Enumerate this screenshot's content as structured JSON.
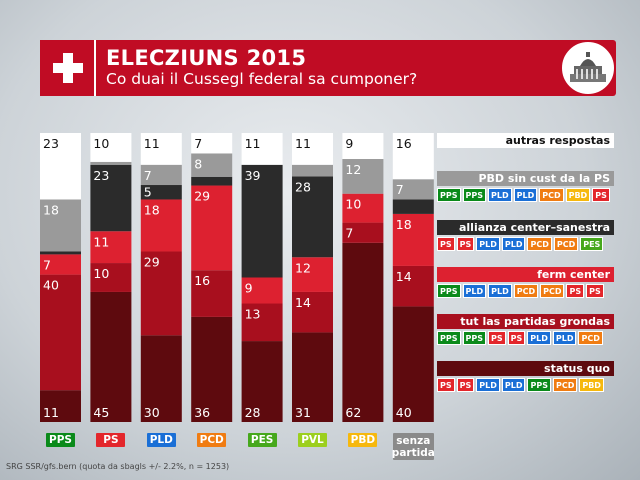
{
  "header": {
    "title": "ELECZIUNS 2015",
    "subtitle": "Co duai il Cussegl federal sa cumponer?"
  },
  "source": "SRG SSR/gfs.bern (quota da sbagls +/- 2.2%, n = 1253)",
  "colors": {
    "status_quo": "#5e0a0e",
    "partidas_grondas": "#a80f1e",
    "ferm_center": "#dd2130",
    "allianza": "#2b2b2b",
    "pbd_sin_ps": "#9a9a9a",
    "autras": "#ffffff",
    "PPS": "#0a8a1a",
    "PS": "#e3262b",
    "PLD": "#1a6fd6",
    "PCD": "#f07c12",
    "PES": "#46a81c",
    "PVL": "#9ccf1e",
    "PBD": "#f6b80d",
    "senza_partida": "#8a8a8a"
  },
  "chart_data": {
    "type": "bar",
    "stacked": true,
    "categories": [
      "PPS",
      "PS",
      "PLD",
      "PCD",
      "PES",
      "PVL",
      "PBD",
      "senza partida"
    ],
    "series": [
      {
        "name": "status quo",
        "values": [
          11,
          45,
          30,
          36,
          28,
          31,
          62,
          40
        ]
      },
      {
        "name": "tut las partidas grondas",
        "values": [
          40,
          10,
          29,
          16,
          13,
          14,
          7,
          14
        ]
      },
      {
        "name": "ferm center",
        "values": [
          7,
          11,
          18,
          29,
          9,
          12,
          10,
          18
        ]
      },
      {
        "name": "allianza center-sanestra",
        "values": [
          1,
          23,
          5,
          3,
          39,
          28,
          0,
          5
        ]
      },
      {
        "name": "PBD sin cust da la PS",
        "values": [
          18,
          1,
          7,
          8,
          0,
          4,
          12,
          7
        ]
      },
      {
        "name": "autras respostas",
        "values": [
          23,
          10,
          11,
          7,
          11,
          11,
          9,
          16
        ]
      }
    ],
    "data_labels": [
      [
        "11",
        "40",
        "7",
        "",
        "18",
        "23"
      ],
      [
        "45",
        "10",
        "11",
        "23",
        "",
        "10"
      ],
      [
        "30",
        "29",
        "18",
        "5",
        "7",
        "11"
      ],
      [
        "36",
        "16",
        "29",
        "",
        "8",
        "7"
      ],
      [
        "28",
        "13",
        "9",
        "39",
        "",
        "11"
      ],
      [
        "31",
        "14",
        "12",
        "28",
        "",
        "11"
      ],
      [
        "62",
        "7",
        "10",
        "",
        "12",
        "9"
      ],
      [
        "40",
        "14",
        "18",
        "",
        "7",
        "16"
      ]
    ],
    "ylim": [
      0,
      100
    ]
  },
  "legend": [
    {
      "key": "autras",
      "label": "autras respostas",
      "chips": []
    },
    {
      "key": "pbd_sin_ps",
      "label": "PBD sin cust da la PS",
      "chips": [
        "PPS",
        "PPS",
        "PLD",
        "PLD",
        "PCD",
        "PBD",
        "PS"
      ]
    },
    {
      "key": "allianza",
      "label": "allianza center–sanestra",
      "chips": [
        "PS",
        "PS",
        "PLD",
        "PLD",
        "PCD",
        "PCD",
        "PES"
      ]
    },
    {
      "key": "ferm_center",
      "label": "ferm center",
      "chips": [
        "PPS",
        "PLD",
        "PLD",
        "PCD",
        "PCD",
        "PS",
        "PS"
      ]
    },
    {
      "key": "partidas_grondas",
      "label": "tut las partidas grondas",
      "chips": [
        "PPS",
        "PPS",
        "PS",
        "PS",
        "PLD",
        "PLD",
        "PCD"
      ]
    },
    {
      "key": "status_quo",
      "label": "status quo",
      "chips": [
        "PS",
        "PS",
        "PLD",
        "PLD",
        "PPS",
        "PCD",
        "PBD"
      ]
    }
  ],
  "party_labels": [
    "PPS",
    "PS",
    "PLD",
    "PCD",
    "PES",
    "PVL",
    "PBD"
  ],
  "senza_partida_label": [
    "senza",
    "partida"
  ]
}
